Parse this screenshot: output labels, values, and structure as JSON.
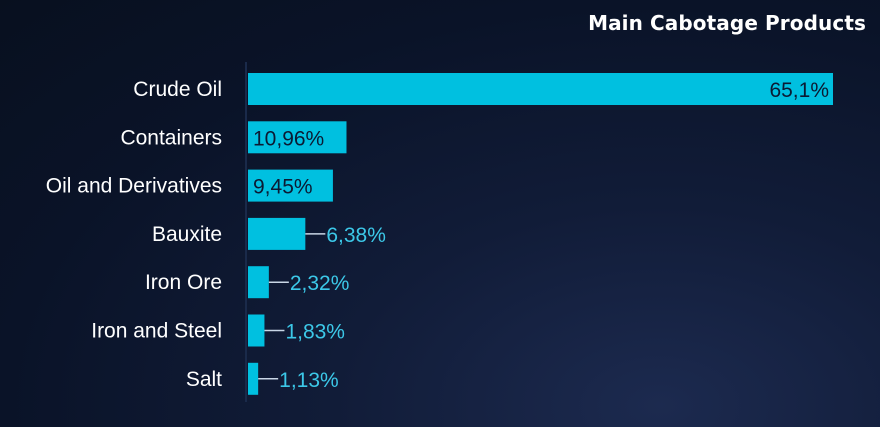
{
  "title": "Main Cabotage Products",
  "colors": {
    "bar": "#00c0e0",
    "value_inside": "#0b1a33",
    "value_outside": "#3cc8e8",
    "category_label": "#ffffff",
    "axis_line": "#1a2a4a"
  },
  "chart_data": {
    "type": "bar",
    "orientation": "horizontal",
    "title": "Main Cabotage Products",
    "xlabel": "",
    "ylabel": "",
    "categories": [
      "Crude Oil",
      "Containers",
      "Oil and Derivatives",
      "Bauxite",
      "Iron Ore",
      "Iron and Steel",
      "Salt"
    ],
    "values": [
      65.1,
      10.96,
      9.45,
      6.38,
      2.32,
      1.83,
      1.13
    ],
    "value_labels": [
      "65,1%",
      "10,96%",
      "9,45%",
      "6,38%",
      "2,32%",
      "1,83%",
      "1,13%"
    ],
    "xlim": [
      0,
      65.1
    ],
    "grid": false,
    "legend": "none"
  }
}
